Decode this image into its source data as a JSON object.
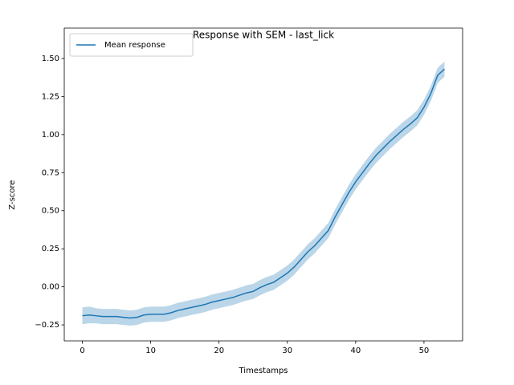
{
  "chart_data": {
    "type": "line",
    "title": "Response with SEM - last_lick",
    "xlabel": "Timestamps",
    "ylabel": "Z-score",
    "x": [
      0,
      1,
      2,
      3,
      4,
      5,
      6,
      7,
      8,
      9,
      10,
      11,
      12,
      13,
      14,
      15,
      16,
      17,
      18,
      19,
      20,
      21,
      22,
      23,
      24,
      25,
      26,
      27,
      28,
      29,
      30,
      31,
      32,
      33,
      34,
      35,
      36,
      37,
      38,
      39,
      40,
      41,
      42,
      43,
      44,
      45,
      46,
      47,
      48,
      49,
      50,
      51,
      52,
      53
    ],
    "series": [
      {
        "name": "Mean response",
        "color": "#1f77b4",
        "values": [
          -0.19,
          -0.185,
          -0.19,
          -0.195,
          -0.195,
          -0.195,
          -0.2,
          -0.205,
          -0.2,
          -0.185,
          -0.18,
          -0.18,
          -0.18,
          -0.17,
          -0.155,
          -0.145,
          -0.135,
          -0.125,
          -0.115,
          -0.1,
          -0.09,
          -0.08,
          -0.07,
          -0.055,
          -0.04,
          -0.03,
          -0.005,
          0.015,
          0.03,
          0.06,
          0.09,
          0.13,
          0.18,
          0.23,
          0.27,
          0.32,
          0.37,
          0.46,
          0.54,
          0.62,
          0.69,
          0.75,
          0.81,
          0.865,
          0.91,
          0.955,
          0.995,
          1.035,
          1.07,
          1.11,
          1.18,
          1.27,
          1.39,
          1.43
        ],
        "sem": [
          0.055,
          0.055,
          0.05,
          0.05,
          0.05,
          0.05,
          0.05,
          0.05,
          0.05,
          0.05,
          0.05,
          0.05,
          0.05,
          0.05,
          0.05,
          0.05,
          0.05,
          0.05,
          0.05,
          0.05,
          0.05,
          0.05,
          0.05,
          0.05,
          0.05,
          0.05,
          0.05,
          0.05,
          0.05,
          0.05,
          0.05,
          0.05,
          0.05,
          0.05,
          0.05,
          0.05,
          0.05,
          0.05,
          0.05,
          0.05,
          0.05,
          0.05,
          0.05,
          0.05,
          0.05,
          0.05,
          0.05,
          0.05,
          0.05,
          0.05,
          0.05,
          0.05,
          0.05,
          0.05
        ],
        "band_color": "#1f77b4",
        "band_opacity": 0.3
      }
    ],
    "xlim": [
      -2.65,
      55.65
    ],
    "ylim": [
      -0.355,
      1.7
    ],
    "xticks": [
      0,
      10,
      20,
      30,
      40,
      50
    ],
    "yticks": [
      {
        "value": -0.25,
        "label": "−0.25"
      },
      {
        "value": 0,
        "label": "0.00"
      },
      {
        "value": 0.25,
        "label": "0.25"
      },
      {
        "value": 0.5,
        "label": "0.50"
      },
      {
        "value": 0.75,
        "label": "0.75"
      },
      {
        "value": 1,
        "label": "1.00"
      },
      {
        "value": 1.25,
        "label": "1.25"
      },
      {
        "value": 1.5,
        "label": "1.50"
      }
    ],
    "legend": "upper left",
    "grid": false
  }
}
